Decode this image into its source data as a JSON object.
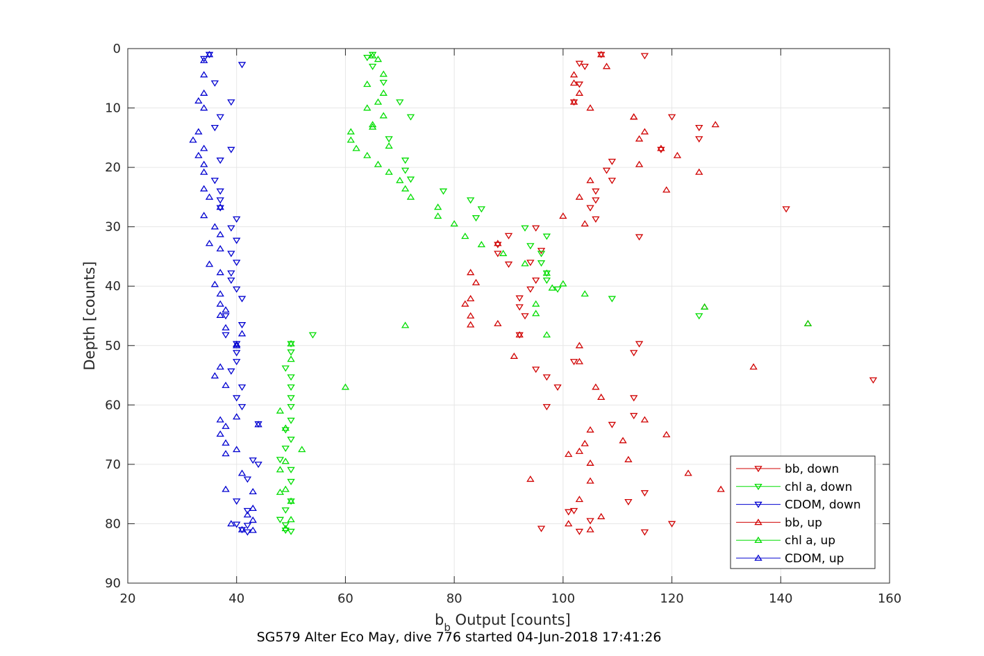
{
  "chart_data": {
    "type": "scatter",
    "xlabel_main": "b",
    "xlabel_sub": "b",
    "xlabel_rest": " Output [counts]",
    "ylabel": "Depth [counts]",
    "subtitle": "SG579 Alter Eco May, dive 776 started 04-Jun-2018 17:41:26",
    "xlim": [
      20,
      160
    ],
    "ylim": [
      0,
      90
    ],
    "y_reversed": true,
    "grid": true,
    "legend_position": "bottom-right",
    "x_ticks": [
      20,
      40,
      60,
      80,
      100,
      120,
      140,
      160
    ],
    "y_ticks": [
      0,
      10,
      20,
      30,
      40,
      50,
      60,
      70,
      80,
      90
    ],
    "series": [
      {
        "name": "bb, down",
        "color": "#d00000",
        "marker": "triangle-down",
        "points": [
          [
            107,
            1
          ],
          [
            115,
            1.2
          ],
          [
            103,
            2.5
          ],
          [
            104,
            3
          ],
          [
            103,
            6
          ],
          [
            102,
            9
          ],
          [
            120,
            11.5
          ],
          [
            125,
            13.3
          ],
          [
            125,
            15.2
          ],
          [
            118,
            17
          ],
          [
            109,
            19
          ],
          [
            108,
            20.5
          ],
          [
            109,
            22.2
          ],
          [
            106,
            24
          ],
          [
            106,
            25.5
          ],
          [
            105,
            26.8
          ],
          [
            106,
            28.7
          ],
          [
            114,
            31.7
          ],
          [
            95,
            30.2
          ],
          [
            90,
            31.5
          ],
          [
            88,
            33
          ],
          [
            88,
            34.5
          ],
          [
            96,
            34
          ],
          [
            94,
            36
          ],
          [
            90,
            36.3
          ],
          [
            95,
            39
          ],
          [
            94,
            40.5
          ],
          [
            92,
            42
          ],
          [
            92,
            43.5
          ],
          [
            92,
            48.2
          ],
          [
            93,
            45
          ],
          [
            95,
            54
          ],
          [
            97,
            55.3
          ],
          [
            99,
            57
          ],
          [
            97,
            60.3
          ],
          [
            113,
            58.8
          ],
          [
            113,
            61.8
          ],
          [
            109,
            63.3
          ],
          [
            115,
            74.8
          ],
          [
            112,
            76.3
          ],
          [
            102,
            77.8
          ],
          [
            101,
            78
          ],
          [
            105,
            79.5
          ],
          [
            120,
            80
          ],
          [
            115,
            81.4
          ],
          [
            103,
            81.3
          ],
          [
            96,
            80.8
          ],
          [
            157,
            55.8
          ],
          [
            141,
            27
          ],
          [
            114,
            49.7
          ],
          [
            113,
            51.2
          ],
          [
            102,
            52.7
          ]
        ]
      },
      {
        "name": "chl a, down",
        "color": "#00dd00",
        "marker": "triangle-down",
        "points": [
          [
            65,
            1
          ],
          [
            64,
            1.5
          ],
          [
            65,
            3
          ],
          [
            67,
            5.7
          ],
          [
            70,
            9
          ],
          [
            72,
            11.5
          ],
          [
            68,
            15.2
          ],
          [
            72,
            22
          ],
          [
            71,
            20.5
          ],
          [
            71,
            18.8
          ],
          [
            78,
            24
          ],
          [
            83,
            25.5
          ],
          [
            85,
            27
          ],
          [
            84,
            28.5
          ],
          [
            93,
            30.2
          ],
          [
            97,
            31.6
          ],
          [
            94,
            33.2
          ],
          [
            96,
            34.5
          ],
          [
            96,
            36.1
          ],
          [
            97,
            37.8
          ],
          [
            97,
            39
          ],
          [
            99,
            40.5
          ],
          [
            109,
            42.1
          ],
          [
            50,
            49.7
          ],
          [
            50,
            51.1
          ],
          [
            49,
            53.8
          ],
          [
            50,
            55.3
          ],
          [
            50,
            57
          ],
          [
            50,
            58.8
          ],
          [
            50,
            60.3
          ],
          [
            50,
            62.6
          ],
          [
            49,
            64.2
          ],
          [
            50,
            65.8
          ],
          [
            49,
            67.3
          ],
          [
            48,
            69.2
          ],
          [
            50,
            70.9
          ],
          [
            50,
            72.9
          ],
          [
            50,
            76.2
          ],
          [
            49,
            77.7
          ],
          [
            48,
            79.3
          ],
          [
            49,
            81.1
          ],
          [
            50,
            81.3
          ],
          [
            54,
            48.2
          ],
          [
            125,
            45
          ],
          [
            49,
            80.2
          ]
        ]
      },
      {
        "name": "CDOM, down",
        "color": "#0000d0",
        "marker": "triangle-down",
        "points": [
          [
            35,
            1
          ],
          [
            34,
            1.7
          ],
          [
            41,
            2.7
          ],
          [
            36,
            5.8
          ],
          [
            39,
            9
          ],
          [
            37,
            11.5
          ],
          [
            36,
            13.3
          ],
          [
            39,
            17
          ],
          [
            37,
            18.8
          ],
          [
            36,
            22.2
          ],
          [
            37,
            24
          ],
          [
            37,
            25.5
          ],
          [
            37,
            26.8
          ],
          [
            40,
            28.7
          ],
          [
            39,
            30.2
          ],
          [
            40,
            32.3
          ],
          [
            39,
            34.5
          ],
          [
            40,
            36
          ],
          [
            39,
            37.8
          ],
          [
            39,
            39
          ],
          [
            40,
            40.5
          ],
          [
            41,
            42.1
          ],
          [
            38,
            45
          ],
          [
            41,
            46.5
          ],
          [
            38,
            48.2
          ],
          [
            40,
            49.7
          ],
          [
            40,
            51.2
          ],
          [
            40,
            52.7
          ],
          [
            39,
            54.3
          ],
          [
            41,
            57
          ],
          [
            40,
            58.8
          ],
          [
            41,
            60.3
          ],
          [
            44,
            63.2
          ],
          [
            44,
            70
          ],
          [
            43,
            69.3
          ],
          [
            42,
            72.5
          ],
          [
            40,
            76.2
          ],
          [
            42,
            77.8
          ],
          [
            42,
            80.3
          ],
          [
            41,
            81
          ],
          [
            42,
            81.4
          ],
          [
            40,
            80.1
          ]
        ]
      },
      {
        "name": "bb, up",
        "color": "#d00000",
        "marker": "triangle-up",
        "points": [
          [
            107,
            1
          ],
          [
            108,
            3
          ],
          [
            102,
            4.4
          ],
          [
            102,
            5.8
          ],
          [
            103,
            7.5
          ],
          [
            102,
            9
          ],
          [
            105,
            10
          ],
          [
            113,
            11.5
          ],
          [
            128,
            12.8
          ],
          [
            115,
            14
          ],
          [
            114,
            15.2
          ],
          [
            118,
            16.8
          ],
          [
            121,
            18
          ],
          [
            114,
            19.5
          ],
          [
            125,
            20.8
          ],
          [
            119,
            23.8
          ],
          [
            105,
            22.2
          ],
          [
            103,
            25
          ],
          [
            100,
            28.2
          ],
          [
            104,
            29.5
          ],
          [
            88,
            32.8
          ],
          [
            83,
            37.7
          ],
          [
            84,
            39.4
          ],
          [
            83,
            42.1
          ],
          [
            82,
            43
          ],
          [
            83,
            45
          ],
          [
            83,
            46.5
          ],
          [
            88,
            46.3
          ],
          [
            92,
            48.2
          ],
          [
            91,
            51.8
          ],
          [
            103,
            50
          ],
          [
            103,
            52.7
          ],
          [
            106,
            57
          ],
          [
            107,
            58.7
          ],
          [
            105,
            64.2
          ],
          [
            104,
            66.5
          ],
          [
            103,
            67.8
          ],
          [
            101,
            68.3
          ],
          [
            105,
            69.8
          ],
          [
            105,
            72.8
          ],
          [
            94,
            72.5
          ],
          [
            103,
            75.9
          ],
          [
            107,
            78.8
          ],
          [
            101,
            80
          ],
          [
            105,
            81
          ],
          [
            111,
            66
          ],
          [
            112,
            69.2
          ],
          [
            115,
            62.5
          ],
          [
            119,
            65
          ],
          [
            123,
            71.5
          ],
          [
            129,
            74.2
          ],
          [
            135,
            53.6
          ],
          [
            145,
            46.3
          ],
          [
            126,
            43.5
          ],
          [
            113,
            11.5
          ]
        ]
      },
      {
        "name": "chl a, up",
        "color": "#00dd00",
        "marker": "triangle-up",
        "points": [
          [
            66,
            1.8
          ],
          [
            65,
            1.2
          ],
          [
            67,
            4.3
          ],
          [
            64,
            6
          ],
          [
            67,
            7.5
          ],
          [
            66,
            9
          ],
          [
            64,
            10
          ],
          [
            67,
            11.3
          ],
          [
            65,
            12.8
          ],
          [
            61,
            14
          ],
          [
            61,
            15.4
          ],
          [
            62,
            16.8
          ],
          [
            68,
            16.4
          ],
          [
            64,
            18
          ],
          [
            66,
            19.5
          ],
          [
            68,
            20.8
          ],
          [
            70,
            22.2
          ],
          [
            71,
            23.6
          ],
          [
            72,
            25
          ],
          [
            77,
            26.7
          ],
          [
            77,
            28.2
          ],
          [
            80,
            29.5
          ],
          [
            82,
            31.6
          ],
          [
            85,
            33
          ],
          [
            89,
            34.5
          ],
          [
            93,
            36.2
          ],
          [
            97,
            37.8
          ],
          [
            98,
            40.3
          ],
          [
            100,
            39.6
          ],
          [
            104,
            41.3
          ],
          [
            95,
            43
          ],
          [
            95,
            44.6
          ],
          [
            97,
            48.2
          ],
          [
            71,
            46.6
          ],
          [
            60,
            57
          ],
          [
            48,
            61
          ],
          [
            49,
            63.9
          ],
          [
            49,
            69.5
          ],
          [
            48,
            70.9
          ],
          [
            52,
            67.5
          ],
          [
            48,
            74.7
          ],
          [
            49,
            74.2
          ],
          [
            50,
            76.2
          ],
          [
            50,
            79.3
          ],
          [
            49,
            80.8
          ],
          [
            126,
            43.5
          ],
          [
            145,
            46.3
          ],
          [
            65,
            13.2
          ],
          [
            50,
            49.7
          ],
          [
            50,
            52.3
          ]
        ]
      },
      {
        "name": "CDOM, up",
        "color": "#0000d0",
        "marker": "triangle-up",
        "points": [
          [
            35,
            1
          ],
          [
            34,
            2
          ],
          [
            34,
            4.4
          ],
          [
            34,
            7.5
          ],
          [
            33,
            8.8
          ],
          [
            34,
            10
          ],
          [
            33,
            14
          ],
          [
            32,
            15.4
          ],
          [
            33,
            18
          ],
          [
            34,
            16.8
          ],
          [
            34,
            19.5
          ],
          [
            34,
            20.8
          ],
          [
            34,
            23.6
          ],
          [
            35,
            25
          ],
          [
            37,
            26.7
          ],
          [
            34,
            28.1
          ],
          [
            36,
            30
          ],
          [
            37,
            31.3
          ],
          [
            35,
            32.8
          ],
          [
            37,
            33.7
          ],
          [
            35,
            36.3
          ],
          [
            37,
            37.7
          ],
          [
            36,
            39.7
          ],
          [
            37,
            41.3
          ],
          [
            37,
            43
          ],
          [
            38,
            44
          ],
          [
            37,
            44.9
          ],
          [
            38,
            47
          ],
          [
            40,
            49.8
          ],
          [
            37,
            53.6
          ],
          [
            36,
            55.1
          ],
          [
            38,
            56.7
          ],
          [
            40,
            50
          ],
          [
            41,
            48
          ],
          [
            40,
            62
          ],
          [
            37,
            62.5
          ],
          [
            38,
            63.6
          ],
          [
            37,
            64.9
          ],
          [
            38,
            66.4
          ],
          [
            40,
            67.5
          ],
          [
            38,
            68.2
          ],
          [
            41,
            71.5
          ],
          [
            43,
            74.6
          ],
          [
            38,
            74.2
          ],
          [
            43,
            77.4
          ],
          [
            43,
            79.4
          ],
          [
            42,
            78.5
          ],
          [
            39,
            80
          ],
          [
            41,
            81
          ],
          [
            43,
            81.1
          ],
          [
            44,
            63.3
          ]
        ]
      }
    ]
  }
}
